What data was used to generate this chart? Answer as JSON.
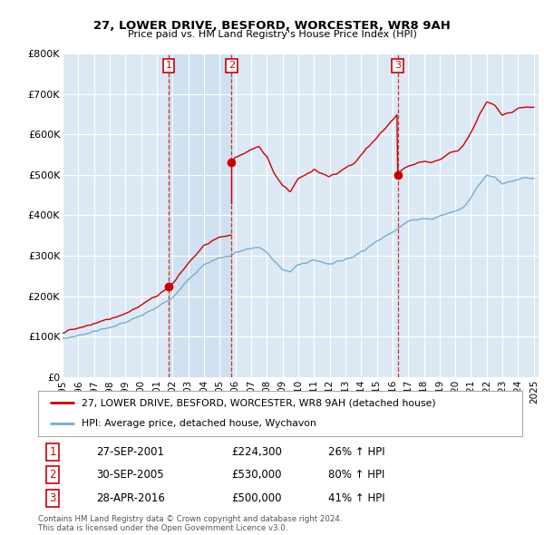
{
  "title1": "27, LOWER DRIVE, BESFORD, WORCESTER, WR8 9AH",
  "title2": "Price paid vs. HM Land Registry's House Price Index (HPI)",
  "legend_property": "27, LOWER DRIVE, BESFORD, WORCESTER, WR8 9AH (detached house)",
  "legend_hpi": "HPI: Average price, detached house, Wychavon",
  "ylabel_ticks": [
    "£0",
    "£100K",
    "£200K",
    "£300K",
    "£400K",
    "£500K",
    "£600K",
    "£700K",
    "£800K"
  ],
  "ytick_values": [
    0,
    100000,
    200000,
    300000,
    400000,
    500000,
    600000,
    700000,
    800000
  ],
  "xtick_years": [
    1995,
    1996,
    1997,
    1998,
    1999,
    2000,
    2001,
    2002,
    2003,
    2004,
    2005,
    2006,
    2007,
    2008,
    2009,
    2010,
    2011,
    2012,
    2013,
    2014,
    2015,
    2016,
    2017,
    2018,
    2019,
    2020,
    2021,
    2022,
    2023,
    2024,
    2025
  ],
  "sale1_date": "27-SEP-2001",
  "sale1_price": 224300,
  "sale1_hpi_pct": "26% ↑ HPI",
  "sale1_x": 2001.75,
  "sale2_date": "30-SEP-2005",
  "sale2_price": 530000,
  "sale2_hpi_pct": "80% ↑ HPI",
  "sale2_x": 2005.75,
  "sale3_date": "28-APR-2016",
  "sale3_price": 500000,
  "sale3_hpi_pct": "41% ↑ HPI",
  "sale3_x": 2016.33,
  "property_color": "#cc0000",
  "hpi_color": "#7aabcf",
  "dashed_color": "#cc0000",
  "plot_bg": "#dce9f5",
  "shade_color": "#c8dff0",
  "footer_text": "Contains HM Land Registry data © Crown copyright and database right 2024.\nThis data is licensed under the Open Government Licence v3.0.",
  "ylim_max": 800000,
  "xlim_min": 1995,
  "xlim_max": 2025.3
}
